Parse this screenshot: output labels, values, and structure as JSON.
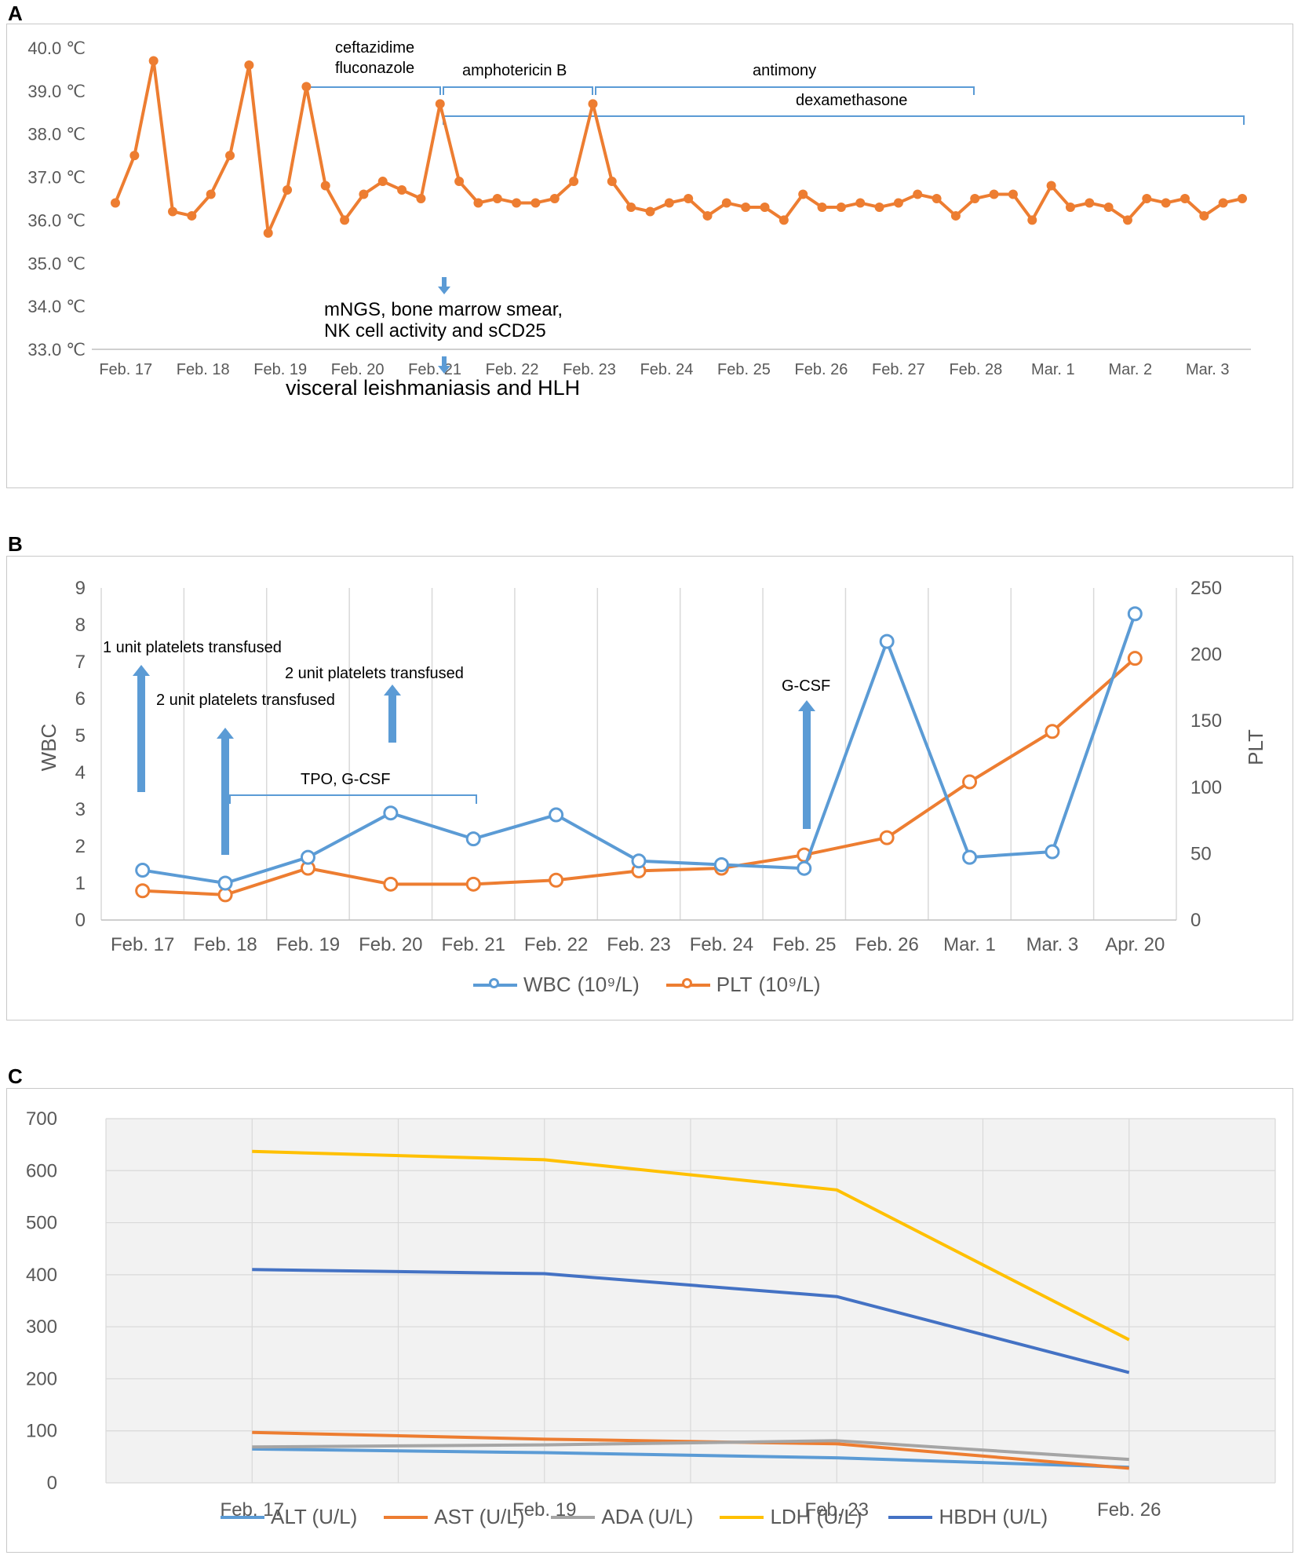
{
  "panel_labels": {
    "a": "A",
    "b": "B",
    "c": "C"
  },
  "colors": {
    "temp": "#ed7d31",
    "wbc": "#5b9bd5",
    "plt": "#ed7d31",
    "alt": "#5b9bd5",
    "ast": "#ed7d31",
    "ada": "#a5a5a5",
    "ldh": "#ffc000",
    "hbdh": "#4472c4",
    "annot": "#5b9bd5",
    "grid": "#d9d9d9",
    "axis_text": "#595959"
  },
  "chart_data": [
    {
      "id": "A",
      "type": "line",
      "ylabel": "",
      "ylim": [
        33,
        40
      ],
      "y_ticks": [
        33,
        34,
        35,
        36,
        37,
        38,
        39,
        40
      ],
      "y_tick_labels": [
        "33.0 ℃",
        "34.0 ℃",
        "35.0 ℃",
        "36.0 ℃",
        "37.0 ℃",
        "38.0 ℃",
        "39.0 ℃",
        "40.0 ℃"
      ],
      "x_tick_labels": [
        "Feb. 17",
        "Feb. 18",
        "Feb. 19",
        "Feb. 20",
        "Feb. 21",
        "Feb. 22",
        "Feb. 23",
        "Feb. 24",
        "Feb. 25",
        "Feb. 26",
        "Feb. 27",
        "Feb. 28",
        "Mar. 1",
        "Mar. 2",
        "Mar. 3"
      ],
      "series": [
        {
          "name": "Temperature",
          "values": [
            36.4,
            37.5,
            39.7,
            36.2,
            36.1,
            36.6,
            37.5,
            39.6,
            35.7,
            36.7,
            39.1,
            36.8,
            36.0,
            36.6,
            36.9,
            36.7,
            36.5,
            38.7,
            36.9,
            36.4,
            36.5,
            36.4,
            36.4,
            36.5,
            36.9,
            38.7,
            36.9,
            36.3,
            36.2,
            36.4,
            36.5,
            36.1,
            36.4,
            36.3,
            36.3,
            36.0,
            36.6,
            36.3,
            36.3,
            36.4,
            36.3,
            36.4,
            36.6,
            36.5,
            36.1,
            36.5,
            36.6,
            36.6,
            36.0,
            36.8,
            36.3,
            36.4,
            36.3,
            36.0,
            36.5,
            36.4,
            36.5,
            36.1,
            36.4,
            36.5
          ]
        }
      ],
      "annotations": {
        "ceftazidime": "ceftazidime",
        "fluconazole": "fluconazole",
        "amphotericin": "amphotericin  B",
        "antimony": "antimony",
        "dexamethasone": "dexamethasone",
        "tests_line1": "mNGS, bone marrow smear,",
        "tests_line2": "NK cell activity and sCD25",
        "diagnosis": "visceral leishmaniasis  and HLH"
      }
    },
    {
      "id": "B",
      "type": "line",
      "ylabel": "WBC",
      "y2label": "PLT",
      "ylim": [
        0,
        9
      ],
      "y2lim": [
        0,
        250
      ],
      "y_ticks": [
        0,
        1,
        2,
        3,
        4,
        5,
        6,
        7,
        8,
        9
      ],
      "y2_ticks": [
        0,
        50,
        100,
        150,
        200,
        250
      ],
      "categories": [
        "Feb. 17",
        "Feb. 18",
        "Feb. 19",
        "Feb. 20",
        "Feb. 21",
        "Feb. 22",
        "Feb. 23",
        "Feb. 24",
        "Feb. 25",
        "Feb. 26",
        "Mar. 1",
        "Mar. 3",
        "Apr. 20"
      ],
      "series": [
        {
          "name": "WBC",
          "unit": "(10⁹/L)",
          "axis": "left",
          "x": [
            0,
            1,
            2,
            3,
            4,
            5,
            6,
            7,
            8,
            9,
            10,
            11,
            12
          ],
          "values": [
            1.35,
            1.0,
            1.7,
            2.9,
            2.2,
            2.85,
            1.6,
            1.5,
            1.4,
            7.55,
            1.7,
            1.85,
            8.3
          ]
        },
        {
          "name": "PLT",
          "unit": "(10⁹/L)",
          "axis": "right",
          "x": [
            0,
            1,
            2,
            3,
            4,
            5,
            6,
            7,
            8,
            9,
            10,
            11,
            12
          ],
          "values": [
            22,
            19,
            39,
            27,
            27,
            30,
            37,
            39,
            49,
            62,
            104,
            142,
            197
          ]
        }
      ],
      "annotations": {
        "plt1": "1 unit platelets transfused",
        "plt2": "2 unit platelets transfused",
        "plt3": "2 unit platelets transfused",
        "tpo": "TPO,  G-CSF",
        "gcsf": "G-CSF"
      }
    },
    {
      "id": "C",
      "type": "line",
      "ylabel": "",
      "ylim": [
        0,
        700
      ],
      "y_ticks": [
        0,
        100,
        200,
        300,
        400,
        500,
        600,
        700
      ],
      "categories": [
        "Feb. 17",
        "Feb. 19",
        "Feb. 23",
        "Feb. 26"
      ],
      "series": [
        {
          "name": "ALT (U/L)",
          "values": [
            65,
            58,
            48,
            30
          ]
        },
        {
          "name": "AST (U/L)",
          "values": [
            97,
            84,
            75,
            28
          ]
        },
        {
          "name": "ADA (U/L)",
          "values": [
            69,
            73,
            81,
            45
          ]
        },
        {
          "name": "LDH (U/L)",
          "values": [
            637,
            621,
            563,
            275
          ]
        },
        {
          "name": "HBDH (U/L)",
          "values": [
            410,
            402,
            358,
            212
          ]
        }
      ]
    }
  ],
  "legend_b": {
    "wbc": "WBC",
    "wbc_unit": "(10⁹/L)",
    "plt": "PLT",
    "plt_unit": "(10⁹/L)"
  },
  "legend_c": [
    "ALT (U/L)",
    "AST (U/L)",
    "ADA (U/L)",
    "LDH (U/L)",
    "HBDH (U/L)"
  ]
}
